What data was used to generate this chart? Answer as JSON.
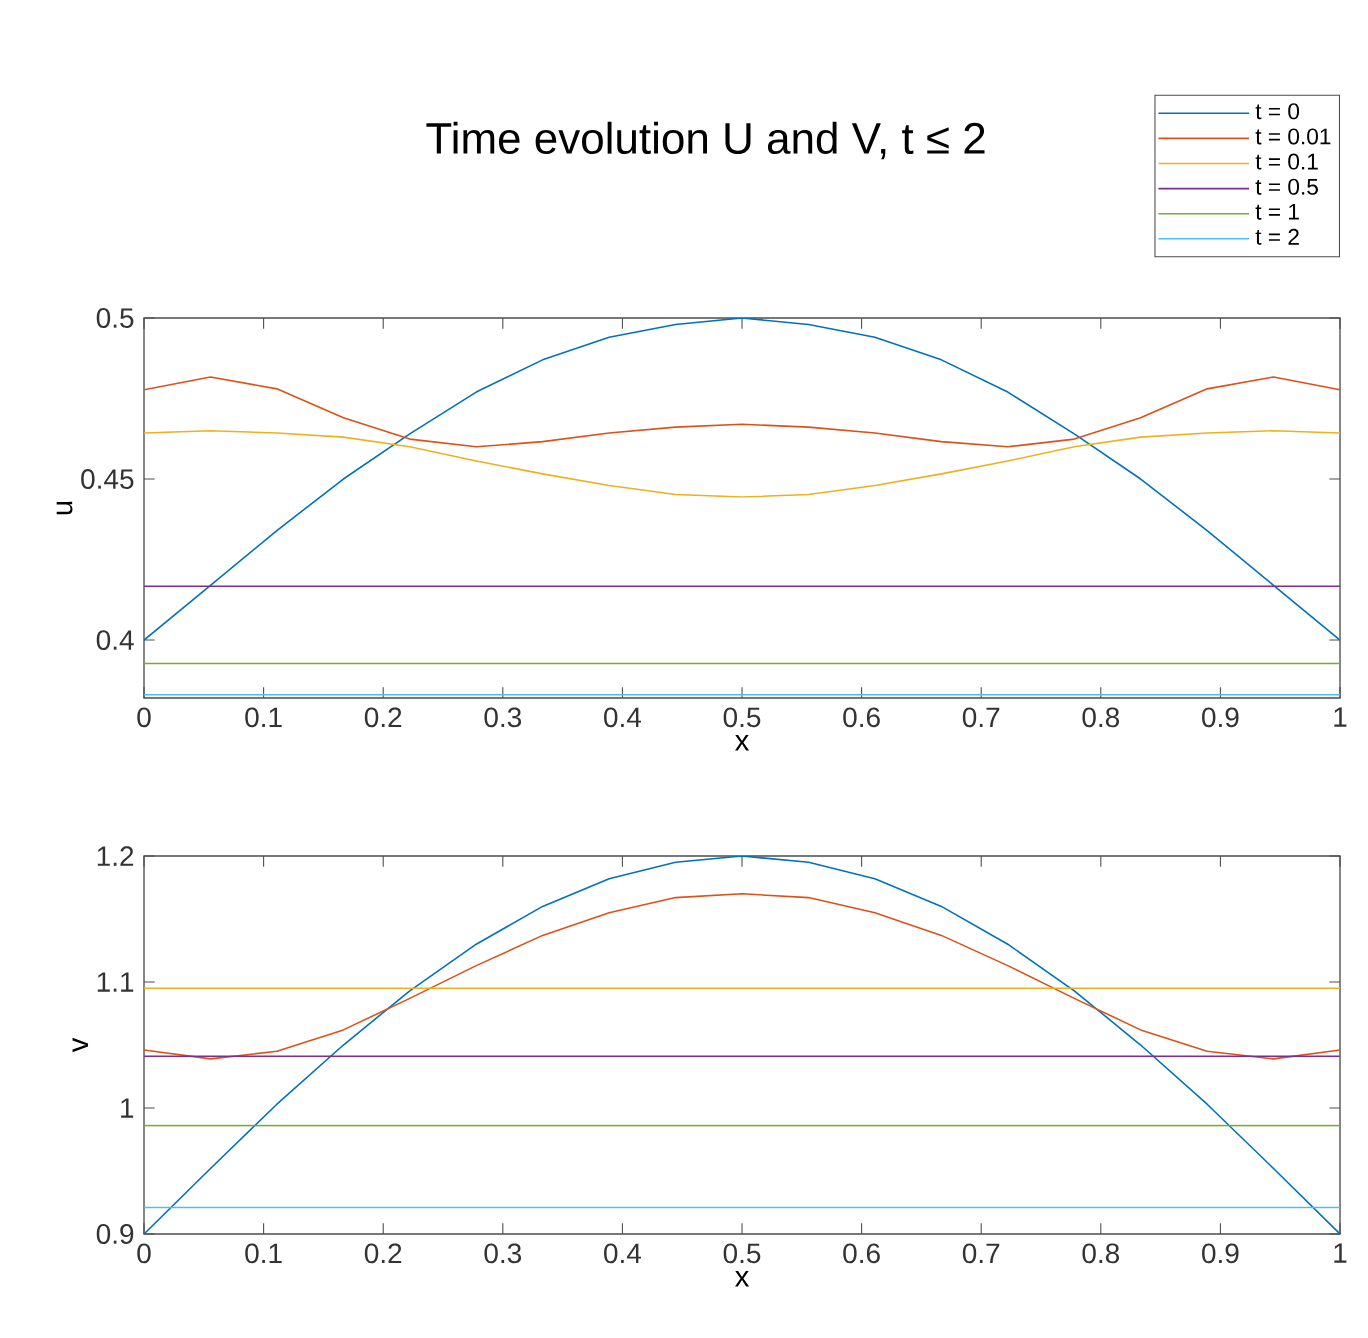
{
  "chart_data": [
    {
      "type": "line",
      "title": "Time evolution U and V, t ≤ 2",
      "xlabel": "x",
      "ylabel": "u",
      "legend": "top right",
      "x": [
        0,
        0.0556,
        0.1111,
        0.1667,
        0.2222,
        0.2778,
        0.3333,
        0.3889,
        0.4444,
        0.5,
        0.5556,
        0.6111,
        0.6667,
        0.7222,
        0.7778,
        0.8333,
        0.8889,
        0.9444,
        1
      ],
      "xlim": [
        0,
        1
      ],
      "xticks": [
        0,
        0.1,
        0.2,
        0.3,
        0.4,
        0.5,
        0.6,
        0.7,
        0.8,
        0.9,
        1
      ],
      "ylim": [
        0.382,
        0.5
      ],
      "yticks": [
        0.4,
        0.45,
        0.5
      ],
      "series": [
        {
          "name": "t = 0",
          "color": "#0072bd",
          "values": [
            0.4,
            0.417,
            0.434,
            0.45,
            0.464,
            0.477,
            0.487,
            0.494,
            0.498,
            0.5,
            0.498,
            0.494,
            0.487,
            0.477,
            0.464,
            0.45,
            0.434,
            0.417,
            0.4
          ]
        },
        {
          "name": "t = 0.01",
          "color": "#d95319",
          "values": [
            0.4777,
            0.4817,
            0.478,
            0.469,
            0.4624,
            0.46,
            0.4616,
            0.4643,
            0.4661,
            0.467,
            0.4661,
            0.4643,
            0.4616,
            0.46,
            0.4624,
            0.469,
            0.478,
            0.4817,
            0.4777
          ]
        },
        {
          "name": "t = 0.1",
          "color": "#edb120",
          "values": [
            0.4643,
            0.465,
            0.4643,
            0.463,
            0.46,
            0.4556,
            0.4516,
            0.448,
            0.4452,
            0.4444,
            0.4452,
            0.448,
            0.4516,
            0.4556,
            0.46,
            0.463,
            0.4643,
            0.465,
            0.4643
          ]
        },
        {
          "name": "t = 0.5",
          "color": "#7e2f8e",
          "values": [
            0.4167,
            0.4167,
            0.4167,
            0.4167,
            0.4167,
            0.4167,
            0.4167,
            0.4167,
            0.4167,
            0.4167,
            0.4167,
            0.4167,
            0.4167,
            0.4167,
            0.4167,
            0.4167,
            0.4167,
            0.4167,
            0.4167
          ]
        },
        {
          "name": "t = 1",
          "color": "#77ac30",
          "values": [
            0.3927,
            0.3927,
            0.3927,
            0.3927,
            0.3927,
            0.3927,
            0.3927,
            0.3927,
            0.3927,
            0.3927,
            0.3927,
            0.3927,
            0.3927,
            0.3927,
            0.3927,
            0.3927,
            0.3927,
            0.3927,
            0.3927
          ]
        },
        {
          "name": "t = 2",
          "color": "#4dbeee",
          "values": [
            0.383,
            0.383,
            0.383,
            0.383,
            0.383,
            0.383,
            0.383,
            0.383,
            0.383,
            0.383,
            0.383,
            0.383,
            0.383,
            0.383,
            0.383,
            0.383,
            0.383,
            0.383,
            0.383
          ]
        }
      ]
    },
    {
      "type": "line",
      "xlabel": "x",
      "ylabel": "v",
      "x": [
        0,
        0.0556,
        0.1111,
        0.1667,
        0.2222,
        0.2778,
        0.3333,
        0.3889,
        0.4444,
        0.5,
        0.5556,
        0.6111,
        0.6667,
        0.7222,
        0.7778,
        0.8333,
        0.8889,
        0.9444,
        1
      ],
      "xlim": [
        0,
        1
      ],
      "xticks": [
        0,
        0.1,
        0.2,
        0.3,
        0.4,
        0.5,
        0.6,
        0.7,
        0.8,
        0.9,
        1
      ],
      "ylim": [
        0.9,
        1.2
      ],
      "yticks": [
        0.9,
        1,
        1.1,
        1.2
      ],
      "series": [
        {
          "color": "#0072bd",
          "values": [
            0.9,
            0.952,
            1.003,
            1.05,
            1.093,
            1.13,
            1.16,
            1.182,
            1.195,
            1.2,
            1.195,
            1.182,
            1.16,
            1.13,
            1.093,
            1.05,
            1.003,
            0.952,
            0.9
          ]
        },
        {
          "color": "#d95319",
          "values": [
            1.046,
            1.039,
            1.045,
            1.062,
            1.087,
            1.113,
            1.137,
            1.155,
            1.167,
            1.17,
            1.167,
            1.155,
            1.137,
            1.113,
            1.087,
            1.062,
            1.045,
            1.039,
            1.046
          ]
        },
        {
          "color": "#edb120",
          "values": [
            1.095,
            1.095,
            1.095,
            1.095,
            1.095,
            1.095,
            1.095,
            1.095,
            1.095,
            1.095,
            1.095,
            1.095,
            1.095,
            1.095,
            1.095,
            1.095,
            1.095,
            1.095,
            1.095
          ]
        },
        {
          "color": "#7e2f8e",
          "values": [
            1.041,
            1.041,
            1.041,
            1.041,
            1.041,
            1.041,
            1.041,
            1.041,
            1.041,
            1.041,
            1.041,
            1.041,
            1.041,
            1.041,
            1.041,
            1.041,
            1.041,
            1.041,
            1.041
          ]
        },
        {
          "color": "#77ac30",
          "values": [
            0.986,
            0.986,
            0.986,
            0.986,
            0.986,
            0.986,
            0.986,
            0.986,
            0.986,
            0.986,
            0.986,
            0.986,
            0.986,
            0.986,
            0.986,
            0.986,
            0.986,
            0.986,
            0.986
          ]
        },
        {
          "color": "#4dbeee",
          "values": [
            0.921,
            0.921,
            0.921,
            0.921,
            0.921,
            0.921,
            0.921,
            0.921,
            0.921,
            0.921,
            0.921,
            0.921,
            0.921,
            0.921,
            0.921,
            0.921,
            0.921,
            0.921,
            0.921
          ]
        }
      ]
    }
  ]
}
